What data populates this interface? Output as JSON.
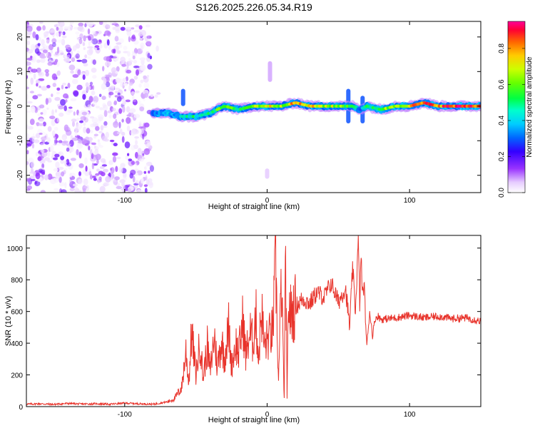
{
  "title": "S126.2025.226.05.34.R19",
  "chart_data": [
    {
      "type": "heatmap",
      "title": "S126.2025.226.05.34.R19",
      "xlabel": "Height of straight line (km)",
      "ylabel": "Frequency (Hz)",
      "xlim": [
        -169,
        150
      ],
      "ylim": [
        -25,
        24.5
      ],
      "xticks": [
        -100,
        0,
        100
      ],
      "yticks": [
        -20,
        -10,
        0,
        10,
        20
      ],
      "colorbar": {
        "label": "Normalized spectral amplitude",
        "range": [
          0,
          0.95
        ],
        "ticks": [
          0.0,
          0.2,
          0.4,
          0.6,
          0.8
        ],
        "colors": [
          "#ffffff",
          "#e6ccff",
          "#9933ff",
          "#3300ff",
          "#0066ff",
          "#00ccff",
          "#00ff66",
          "#33ff00",
          "#ccff00",
          "#ffcc00",
          "#ff6600",
          "#ff0033",
          "#ff0099"
        ]
      },
      "noise_region": {
        "x": [
          -169,
          -82
        ],
        "y": [
          -25,
          24.5
        ],
        "amplitude": [
          0.02,
          0.2
        ]
      },
      "signal_ridge": {
        "x": [
          -80,
          -70,
          -60,
          -50,
          -40,
          -30,
          -20,
          -10,
          0,
          10,
          20,
          30,
          40,
          50,
          60,
          65,
          70,
          80,
          90,
          100,
          110,
          120,
          130,
          140,
          150
        ],
        "frequency": [
          -2,
          -2,
          -3,
          -3,
          -2,
          0,
          -1,
          0,
          0,
          0,
          1,
          0,
          0,
          0,
          0,
          -1,
          0,
          -1,
          0,
          0,
          1,
          0,
          0,
          0,
          0
        ],
        "amplitude": [
          0.35,
          0.4,
          0.45,
          0.5,
          0.55,
          0.6,
          0.55,
          0.65,
          0.75,
          0.7,
          0.8,
          0.75,
          0.7,
          0.65,
          0.6,
          0.35,
          0.5,
          0.6,
          0.7,
          0.8,
          0.85,
          0.9,
          0.9,
          0.95,
          0.9
        ]
      },
      "features": [
        {
          "x": -59,
          "y": [
            0,
            5
          ],
          "amplitude": 0.3
        },
        {
          "x": 2,
          "y": [
            7,
            13
          ],
          "amplitude": 0.1
        },
        {
          "x": 0,
          "y": [
            -21,
            -18
          ],
          "amplitude": 0.08
        },
        {
          "x": 57,
          "y": [
            -5,
            5
          ],
          "amplitude": 0.3
        },
        {
          "x": 67,
          "y": [
            -5,
            3
          ],
          "amplitude": 0.3
        }
      ]
    },
    {
      "type": "line",
      "xlabel": "Height of straight line (km)",
      "ylabel": "SNR (10 * v/v)",
      "xlim": [
        -169,
        150
      ],
      "ylim": [
        0,
        1080
      ],
      "xticks": [
        -100,
        0,
        100
      ],
      "yticks": [
        0,
        200,
        400,
        600,
        800,
        1000
      ],
      "series": [
        {
          "name": "SNR",
          "color": "#e8332b",
          "x": [
            -169,
            -160,
            -150,
            -140,
            -130,
            -120,
            -110,
            -100,
            -90,
            -80,
            -70,
            -65,
            -60,
            -57,
            -55,
            -53,
            -50,
            -47,
            -45,
            -42,
            -40,
            -37,
            -35,
            -32,
            -30,
            -27,
            -25,
            -22,
            -20,
            -17,
            -15,
            -12,
            -10,
            -8,
            -6,
            -4,
            -2,
            0,
            4,
            6,
            8,
            10,
            12,
            13,
            14,
            15,
            16,
            18,
            20,
            25,
            30,
            35,
            40,
            45,
            50,
            55,
            58,
            60,
            62,
            64,
            65,
            66,
            67,
            68,
            70,
            72,
            74,
            76,
            78,
            80,
            90,
            100,
            110,
            120,
            130,
            140,
            150
          ],
          "values": [
            15,
            18,
            14,
            20,
            16,
            18,
            15,
            22,
            18,
            15,
            30,
            50,
            120,
            350,
            150,
            470,
            200,
            420,
            180,
            380,
            220,
            450,
            250,
            420,
            300,
            500,
            260,
            400,
            330,
            550,
            320,
            470,
            400,
            590,
            300,
            620,
            380,
            420,
            480,
            900,
            150,
            800,
            50,
            960,
            40,
            700,
            580,
            600,
            630,
            680,
            650,
            720,
            690,
            780,
            660,
            750,
            500,
            880,
            600,
            1050,
            650,
            950,
            700,
            780,
            380,
            600,
            450,
            560,
            570,
            550,
            560,
            575,
            560,
            570,
            555,
            560,
            540
          ]
        }
      ]
    }
  ]
}
